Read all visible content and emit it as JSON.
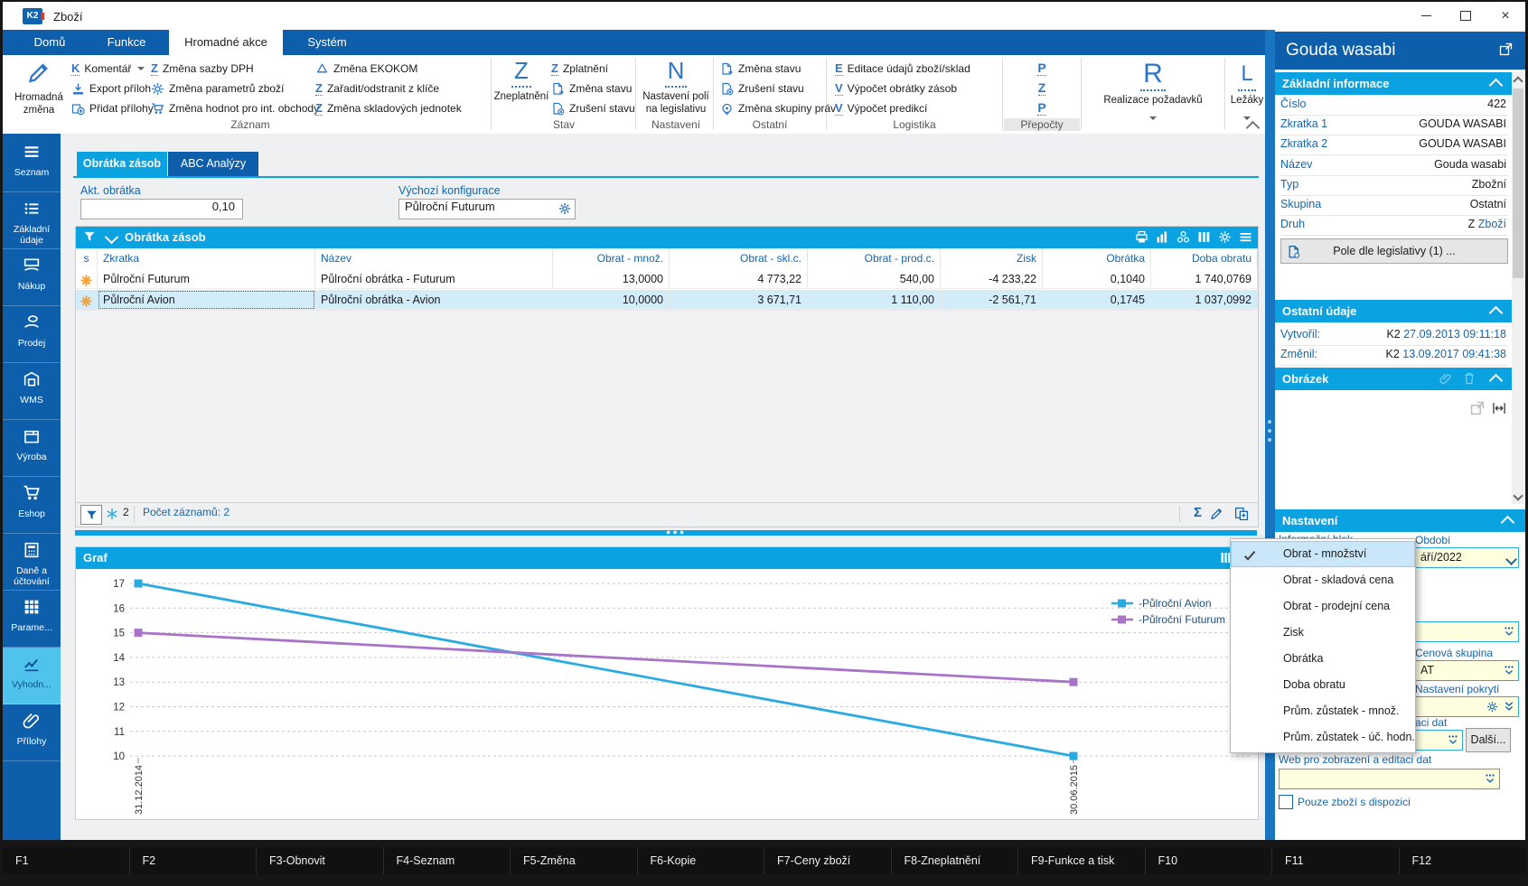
{
  "window": {
    "title": "Zboží"
  },
  "ribbon": {
    "tabs": [
      "Domů",
      "Funkce",
      "Hromadné akce",
      "Systém"
    ],
    "active_tab": "Hromadné akce",
    "groups": [
      {
        "label": "Záznam",
        "big": {
          "icon": "pencil-icon",
          "label": "Hromadná změna"
        },
        "cols": [
          [
            {
              "icon": "letter-K",
              "label": "Komentář",
              "caret": true
            },
            {
              "icon": "export-icon",
              "label": "Export příloh"
            },
            {
              "icon": "add-attachment-icon",
              "label": "Přidat přílohy"
            }
          ],
          [
            {
              "icon": "letter-Z",
              "label": "Změna sazby DPH"
            },
            {
              "icon": "gear-icon",
              "label": "Změna parametrů zboží"
            },
            {
              "icon": "cart-icon",
              "label": "Změna hodnot pro int. obchody"
            }
          ],
          [
            {
              "icon": "recycle-icon",
              "label": "Změna EKOKOM"
            },
            {
              "icon": "letter-Z",
              "label": "Zařadit/odstranit z klíče"
            },
            {
              "icon": "letter-Z",
              "label": "Změna skladových jednotek"
            }
          ]
        ]
      },
      {
        "label": "Stav",
        "big": {
          "icon": "letter-Z",
          "label": "Zneplatnění"
        },
        "cols": [
          [
            {
              "icon": "letter-Z",
              "label": "Zplatnění"
            },
            {
              "icon": "doc-arrow-icon",
              "label": "Změna stavu"
            },
            {
              "icon": "doc-x-icon",
              "label": "Zrušení stavu"
            }
          ]
        ]
      },
      {
        "label": "Nastavení",
        "big": {
          "icon": "letter-N",
          "label": "Nastavení polí na legislativu"
        }
      },
      {
        "label": "Ostatní",
        "cols": [
          [
            {
              "icon": "doc-arrow-icon",
              "label": "Změna stavu"
            },
            {
              "icon": "doc-x-icon",
              "label": "Zrušení stavu"
            },
            {
              "icon": "badge-icon",
              "label": "Změna skupiny práv"
            }
          ]
        ]
      },
      {
        "label": "Logistika",
        "cols": [
          [
            {
              "icon": "letter-E",
              "label": "Editace údajů zboží/sklad"
            },
            {
              "icon": "letter-V",
              "label": "Výpočet obrátky zásob"
            },
            {
              "icon": "letter-V",
              "label": "Výpočet predikcí"
            }
          ]
        ]
      },
      {
        "label": "Přepočty",
        "stack": [
          "P",
          "Z",
          "P"
        ]
      },
      {
        "label": "Realizace požadavků",
        "big_letter": "R",
        "caret": true
      },
      {
        "label": "Ležáky",
        "big_letter": "L",
        "caret": true
      }
    ]
  },
  "sidebar": {
    "active": "Vyhodn...",
    "items": [
      {
        "label": "Seznam",
        "icon": "menu-icon"
      },
      {
        "label": "Základní údaje",
        "icon": "list-icon"
      },
      {
        "label": "Nákup",
        "icon": "purchase-icon"
      },
      {
        "label": "Prodej",
        "icon": "sale-icon"
      },
      {
        "label": "WMS",
        "icon": "warehouse-icon"
      },
      {
        "label": "Výroba",
        "icon": "box-icon"
      },
      {
        "label": "Eshop",
        "icon": "cart-icon"
      },
      {
        "label": "Daně a účtování",
        "icon": "calculator-icon"
      },
      {
        "label": "Parame...",
        "icon": "grid-icon"
      },
      {
        "label": "Vyhodn...",
        "icon": "chart-icon"
      },
      {
        "label": "Přílohy",
        "icon": "paperclip-icon"
      }
    ]
  },
  "content": {
    "tabs": [
      {
        "label": "Obrátka zásob",
        "active": true
      },
      {
        "label": "ABC Analýzy",
        "active": false
      }
    ],
    "fields": {
      "akt_obratka_label": "Akt. obrátka",
      "akt_obratka_value": "0,10",
      "vychozi_label": "Výchozí konfigurace",
      "vychozi_value": "Půlroční Futurum"
    },
    "table": {
      "title": "Obrátka zásob",
      "columns": [
        "s",
        "Zkratka",
        "Název",
        "Obrat - množ.",
        "Obrat - skl.c.",
        "Obrat - prod.c.",
        "Zisk",
        "Obrátka",
        "Doba obratu"
      ],
      "rows": [
        {
          "zkratka": "Půlroční Futurum",
          "nazev": "Půlroční obrátka - Futurum",
          "mnoz": "13,0000",
          "skl": "4 773,22",
          "prod": "540,00",
          "zisk": "-4 233,22",
          "obratka": "0,1040",
          "doba": "1 740,0769",
          "selected": false
        },
        {
          "zkratka": "Půlroční Avion",
          "nazev": "Půlroční obrátka - Avion",
          "mnoz": "10,0000",
          "skl": "3 671,71",
          "prod": "1 110,00",
          "zisk": "-2 561,71",
          "obratka": "0,1745",
          "doba": "1 037,0992",
          "selected": true
        }
      ],
      "status": {
        "filter_badge": "2",
        "count": "Počet záznamů: 2"
      }
    },
    "chart_title": "Graf"
  },
  "chart_data": {
    "type": "line",
    "title": "Graf",
    "x": [
      "31.12.2014",
      "30.06.2015"
    ],
    "series": [
      {
        "name": "-Půlroční Avion",
        "values": [
          17,
          10
        ],
        "color": "#29abe2"
      },
      {
        "name": "-Půlroční Futurum",
        "values": [
          15,
          13
        ],
        "color": "#a873c9"
      }
    ],
    "ylim": [
      10,
      17
    ],
    "yticks": [
      10,
      11,
      12,
      13,
      14,
      15,
      16,
      17
    ],
    "grid": "dashed",
    "legend_position": "right"
  },
  "menu": {
    "items": [
      {
        "label": "Obrat - množství",
        "checked": true
      },
      {
        "label": "Obrat - skladová cena",
        "checked": false
      },
      {
        "label": "Obrat - prodejní cena",
        "checked": false
      },
      {
        "label": "Zisk",
        "checked": false
      },
      {
        "label": "Obrátka",
        "checked": false
      },
      {
        "label": "Doba obratu",
        "checked": false
      },
      {
        "label": "Prům. zůstatek - množ.",
        "checked": false
      },
      {
        "label": "Prům. zůstatek - úč. hodn.",
        "checked": false
      }
    ]
  },
  "right_panel": {
    "title": "Gouda wasabi",
    "zakladni": {
      "title": "Základní informace",
      "rows": [
        {
          "label": "Číslo",
          "value": "422"
        },
        {
          "label": "Zkratka 1",
          "value": "GOUDA WASABI"
        },
        {
          "label": "Zkratka 2",
          "value": "GOUDA WASABI"
        },
        {
          "label": "Název",
          "value": "Gouda wasabi"
        },
        {
          "label": "Typ",
          "value": "Zbožní"
        },
        {
          "label": "Skupina",
          "value": "Ostatní"
        },
        {
          "label": "Druh",
          "value": "Z",
          "link": "Zboží"
        }
      ],
      "button": "Pole dle legislativy (1) ..."
    },
    "ostatni": {
      "title": "Ostatní údaje",
      "rows": [
        {
          "label": "Vytvořil:",
          "prefix": "K2",
          "value": "27.09.2013 09:11:18"
        },
        {
          "label": "Změnil:",
          "prefix": "K2",
          "value": "13.09.2017 09:41:38"
        }
      ]
    },
    "obrazek": {
      "title": "Obrázek"
    },
    "nastaveni": {
      "title": "Nastavení",
      "blok_label": "Informační blok",
      "obdobi_label": "Období",
      "obdobi_value": "áří/2022",
      "cenova_label": "Cenová skupina",
      "cenova_value": "AT",
      "pokryti_label": "Nastavení pokrytí",
      "fragment_label": "aci dat",
      "dalsi": "Další...",
      "web_label": "Web pro zobrazení a editaci dat",
      "checkbox": "Pouze zboží s dispozici"
    }
  },
  "fkeys": [
    "F1",
    "F2",
    "F3-Obnovit",
    "F4-Seznam",
    "F5-Změna",
    "F6-Kopie",
    "F7-Ceny zboží",
    "F8-Zneplatnění",
    "F9-Funkce a tisk",
    "F10",
    "F11",
    "F12"
  ],
  "colors": {
    "dark_blue": "#0d5fab",
    "cyan": "#0aa2e0",
    "accent_letter": "#2d76c8",
    "selection": "#d3ecfa",
    "yellow_field": "#ffffe0",
    "orange_marker": "#f2a33c",
    "avion_line": "#29abe2",
    "futurum_line": "#a873c9"
  }
}
